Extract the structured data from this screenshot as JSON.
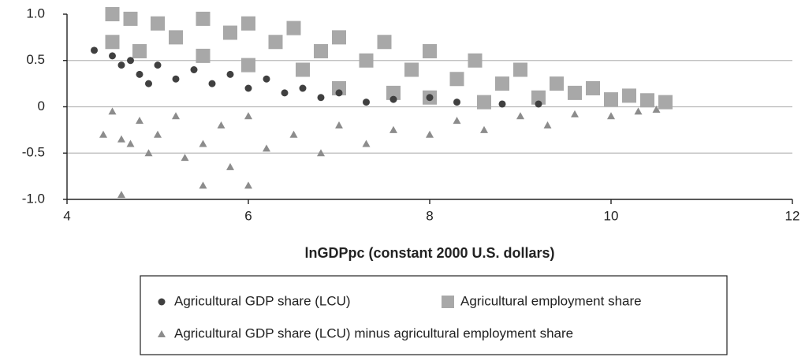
{
  "chart_data": {
    "type": "scatter",
    "xlabel": "lnGDPpc (constant 2000 U.S. dollars)",
    "xlim": [
      4,
      12
    ],
    "xticks": [
      4,
      6,
      8,
      10,
      12
    ],
    "ylim": [
      -1,
      1
    ],
    "yticks": [
      {
        "value": 1,
        "label": "1.0"
      },
      0.5,
      0,
      -0.5,
      {
        "value": -1,
        "label": "-1.0"
      }
    ],
    "grid": true,
    "legend": "bottom",
    "series": [
      {
        "name": "Agricultural GDP share (LCU)",
        "color": "#404040",
        "marker": "circle",
        "x": [
          4.3,
          4.5,
          4.6,
          4.7,
          4.8,
          4.9,
          5.0,
          5.2,
          5.4,
          5.6,
          5.8,
          6.0,
          6.2,
          6.4,
          6.6,
          6.8,
          7.0,
          7.3,
          7.6,
          8.0,
          8.3,
          8.8,
          9.2
        ],
        "values": [
          0.61,
          0.55,
          0.45,
          0.5,
          0.35,
          0.25,
          0.45,
          0.3,
          0.4,
          0.25,
          0.35,
          0.2,
          0.3,
          0.15,
          0.2,
          0.1,
          0.15,
          0.05,
          0.08,
          0.1,
          0.05,
          0.03,
          0.03
        ]
      },
      {
        "name": "Agricultural employment share",
        "color": "#a8a8a8",
        "marker": "square",
        "x": [
          4.5,
          4.5,
          4.7,
          4.8,
          5.0,
          5.2,
          5.5,
          5.5,
          5.8,
          6.0,
          6.0,
          6.3,
          6.5,
          6.6,
          6.8,
          7.0,
          7.0,
          7.3,
          7.5,
          7.6,
          7.8,
          8.0,
          8.0,
          8.3,
          8.5,
          8.6,
          8.8,
          9.0,
          9.2,
          9.4,
          9.6,
          9.8,
          10.0,
          10.2,
          10.4,
          10.6
        ],
        "values": [
          1.0,
          0.7,
          0.95,
          0.6,
          0.9,
          0.75,
          0.95,
          0.55,
          0.8,
          0.9,
          0.45,
          0.7,
          0.85,
          0.4,
          0.6,
          0.75,
          0.2,
          0.5,
          0.7,
          0.15,
          0.4,
          0.6,
          0.1,
          0.3,
          0.5,
          0.05,
          0.25,
          0.4,
          0.1,
          0.25,
          0.15,
          0.2,
          0.08,
          0.12,
          0.07,
          0.05
        ]
      },
      {
        "name": "Agricultural GDP share (LCU) minus agricultural employment share",
        "color": "#8c8c8c",
        "marker": "triangle",
        "x": [
          4.4,
          4.5,
          4.6,
          4.6,
          4.7,
          4.8,
          4.9,
          5.0,
          5.2,
          5.3,
          5.5,
          5.5,
          5.7,
          5.8,
          6.0,
          6.0,
          6.2,
          6.5,
          6.8,
          7.0,
          7.3,
          7.6,
          8.0,
          8.3,
          8.6,
          9.0,
          9.3,
          9.6,
          10.0,
          10.3,
          10.5
        ],
        "values": [
          -0.3,
          -0.05,
          -0.35,
          -0.95,
          -0.4,
          -0.15,
          -0.5,
          -0.3,
          -0.1,
          -0.55,
          -0.85,
          -0.4,
          -0.2,
          -0.65,
          -0.85,
          -0.1,
          -0.45,
          -0.3,
          -0.5,
          -0.2,
          -0.4,
          -0.25,
          -0.3,
          -0.15,
          -0.25,
          -0.1,
          -0.2,
          -0.08,
          -0.1,
          -0.05,
          -0.03
        ]
      }
    ]
  }
}
